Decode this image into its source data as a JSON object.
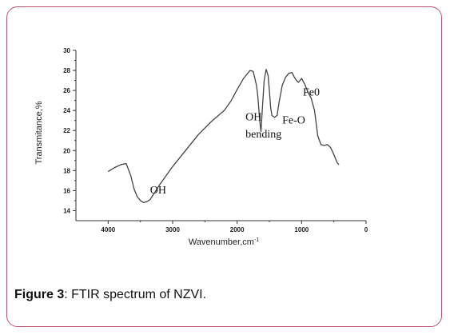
{
  "caption": {
    "label": "Figure 3",
    "text": ": FTIR spectrum of NZVI."
  },
  "colors": {
    "frame": "#c0506c",
    "line": "#444444"
  },
  "chart_data": {
    "type": "line",
    "title": "",
    "xlabel": "Wavenumber,cm",
    "xlabel_sup": "-1",
    "ylabel": "Transmitance,%",
    "xlim": [
      4500,
      0
    ],
    "ylim": [
      13,
      30
    ],
    "x_ticks": [
      4000,
      3000,
      2000,
      1000,
      0
    ],
    "y_ticks": [
      14,
      16,
      18,
      20,
      22,
      24,
      26,
      28,
      30
    ],
    "series": [
      {
        "x": [
          4000,
          3900,
          3800,
          3720,
          3650,
          3600,
          3550,
          3500,
          3450,
          3400,
          3350,
          3300,
          3200,
          3000,
          2800,
          2600,
          2400,
          2200,
          2100,
          2000,
          1900,
          1800,
          1750,
          1700,
          1680,
          1650,
          1630,
          1610,
          1580,
          1550,
          1520,
          1500,
          1480,
          1460,
          1420,
          1380,
          1350,
          1300,
          1250,
          1200,
          1150,
          1120,
          1080,
          1050,
          1000,
          950,
          900,
          850,
          800,
          750,
          700,
          650,
          600,
          550,
          500,
          450,
          420
        ],
        "y": [
          17.9,
          18.3,
          18.6,
          18.7,
          17.5,
          16.2,
          15.4,
          15.0,
          14.8,
          14.9,
          15.1,
          15.6,
          16.6,
          18.4,
          20.0,
          21.6,
          22.9,
          24.0,
          24.9,
          26.1,
          27.2,
          28.0,
          27.9,
          26.5,
          25.5,
          23.0,
          21.9,
          24.0,
          27.0,
          28.1,
          27.5,
          26.0,
          24.3,
          23.5,
          23.3,
          23.5,
          24.8,
          26.5,
          27.3,
          27.7,
          27.8,
          27.4,
          27.0,
          26.8,
          27.2,
          26.6,
          25.8,
          25.2,
          24.0,
          21.5,
          20.6,
          20.5,
          20.6,
          20.3,
          19.6,
          18.8,
          18.6
        ]
      }
    ],
    "annotations": [
      {
        "text": "OH",
        "x": 3350,
        "y": 15.7
      },
      {
        "text": "OH",
        "x": 1870,
        "y": 23.0
      },
      {
        "text": "bending",
        "x": 1870,
        "y": 21.3
      },
      {
        "text": "Fe-O",
        "x": 1300,
        "y": 22.7
      },
      {
        "text": "Fe0",
        "x": 980,
        "y": 25.5
      }
    ]
  }
}
